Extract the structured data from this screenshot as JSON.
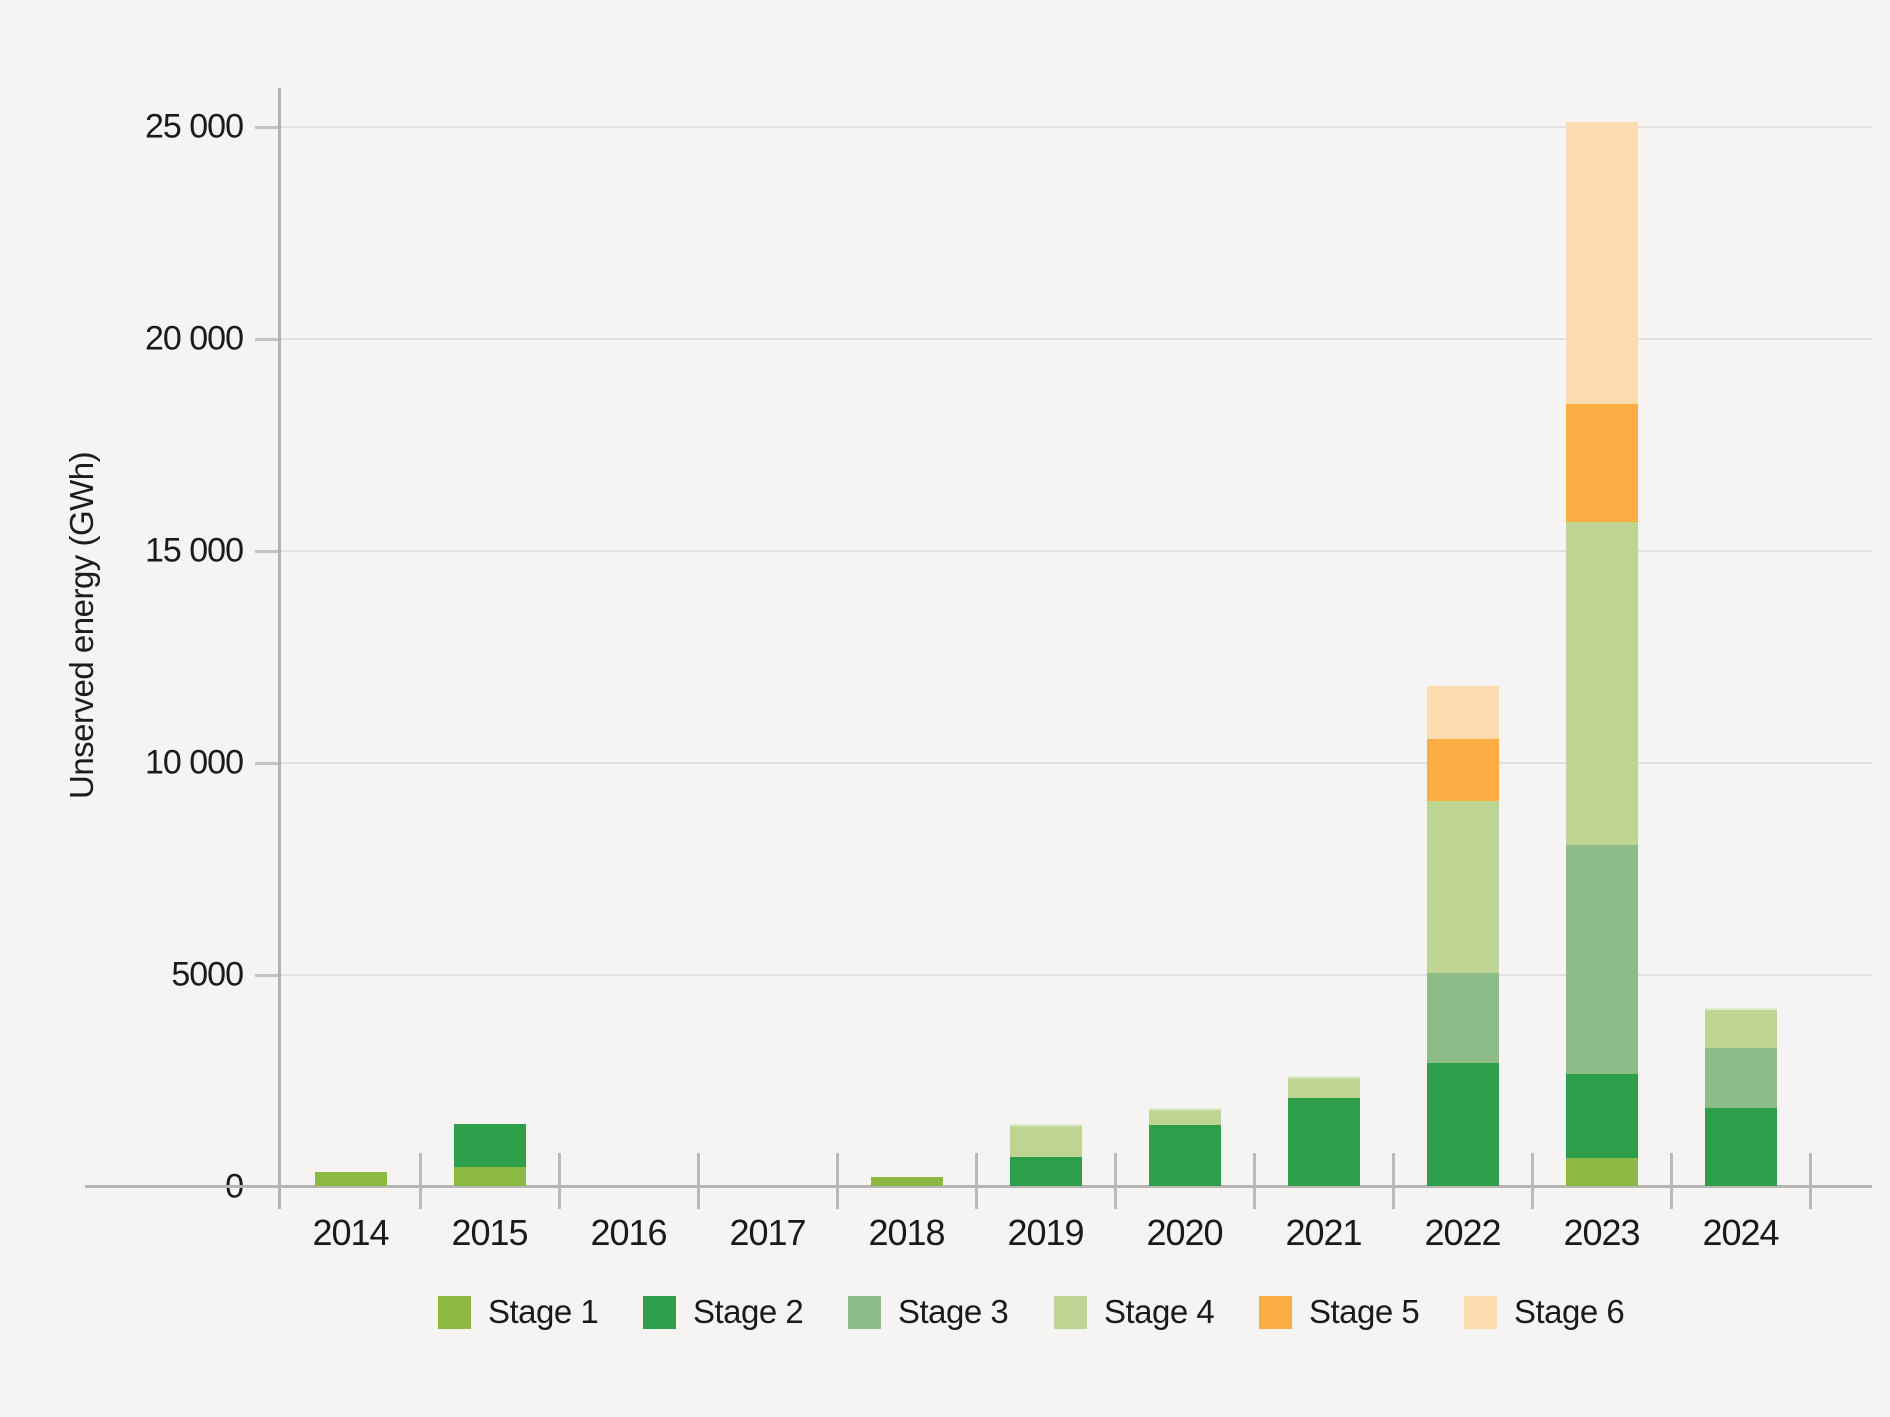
{
  "figure": {
    "background_color": "#f5f4f2",
    "gridline_color": "#e3e2e0",
    "axis_color": "#b3b2b0",
    "text_color": "#1a1a1a"
  },
  "chart_data": {
    "type": "bar",
    "stacked": true,
    "title": "",
    "xlabel": "",
    "ylabel": "Unserved energy (GWh)",
    "ylim": [
      0,
      25000
    ],
    "grid": "horizontal",
    "legend_position": "bottom",
    "ytick_values": [
      0,
      5000,
      10000,
      15000,
      20000,
      25000
    ],
    "ytick_labels": [
      "0",
      "5000",
      "10 000",
      "15 000",
      "20 000",
      "25 000"
    ],
    "categories": [
      "2014",
      "2015",
      "2016",
      "2017",
      "2018",
      "2019",
      "2020",
      "2021",
      "2022",
      "2023",
      "2024"
    ],
    "series": [
      {
        "name": "Stage 1",
        "color": "#8bb942",
        "values": [
          340,
          450,
          0,
          0,
          210,
          0,
          0,
          0,
          0,
          650,
          0
        ]
      },
      {
        "name": "Stage 2",
        "color": "#2f9e4a",
        "values": [
          0,
          1020,
          0,
          0,
          0,
          690,
          1450,
          2080,
          2910,
          1990,
          1850
        ]
      },
      {
        "name": "Stage 3",
        "color": "#8ebc88",
        "values": [
          0,
          0,
          0,
          0,
          0,
          0,
          0,
          0,
          2110,
          5410,
          1400
        ]
      },
      {
        "name": "Stage 4",
        "color": "#bdd493",
        "values": [
          0,
          0,
          0,
          0,
          0,
          770,
          390,
          520,
          4050,
          7610,
          950
        ]
      },
      {
        "name": "Stage 5",
        "color": "#fbac42",
        "values": [
          0,
          0,
          0,
          0,
          0,
          0,
          0,
          0,
          1470,
          2790,
          0
        ]
      },
      {
        "name": "Stage 6",
        "color": "#fcdcae",
        "values": [
          0,
          0,
          0,
          0,
          0,
          0,
          0,
          0,
          1250,
          6640,
          0
        ]
      }
    ],
    "totals": [
      340,
      1470,
      0,
      0,
      210,
      1460,
      1840,
      2600,
      11790,
      25090,
      4200
    ]
  },
  "legend": {
    "items": [
      "Stage 1",
      "Stage 2",
      "Stage 3",
      "Stage 4",
      "Stage 5",
      "Stage 6"
    ]
  }
}
